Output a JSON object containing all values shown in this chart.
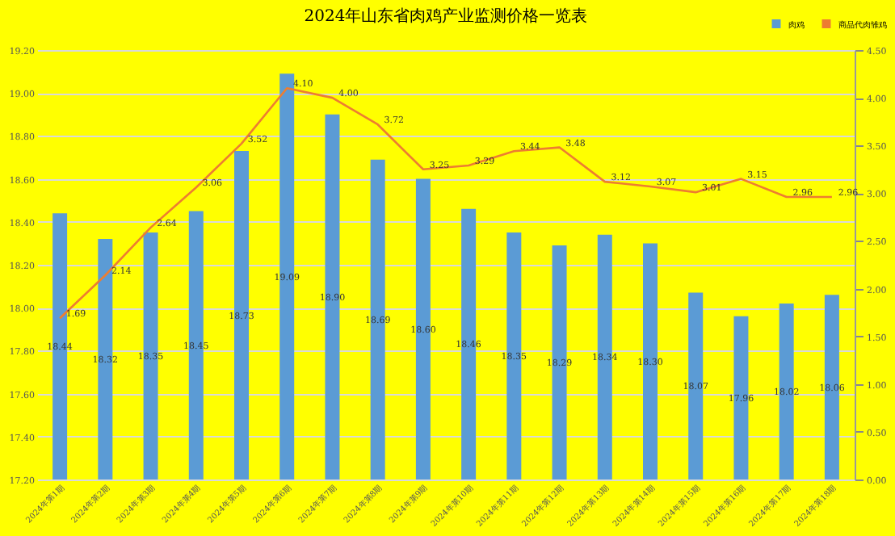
{
  "chart_data": {
    "type": "bar",
    "title": "2024年山东省肉鸡产业监测价格一览表",
    "categories": [
      "2024年第1期",
      "2024年第2期",
      "2024年第3期",
      "2024年第4期",
      "2024年第5期",
      "2024年第6期",
      "2024年第7期",
      "2024年第8期",
      "2024年第9期",
      "2024年第10期",
      "2024年第11期",
      "2024年第12期",
      "2024年第13期",
      "2024年第14期",
      "2024年第15期",
      "2024年第16期",
      "2024年第17期",
      "2024年第18期"
    ],
    "series": [
      {
        "name": "肉鸡",
        "color": "#5b9bd5",
        "values": [
          18.44,
          18.32,
          18.35,
          18.45,
          18.73,
          19.09,
          18.9,
          18.69,
          18.6,
          18.46,
          18.35,
          18.29,
          18.34,
          18.3,
          18.07,
          17.96,
          18.02,
          18.06
        ],
        "value_labels": [
          "18.44",
          "18.32",
          "18.35",
          "18.45",
          "18.73",
          "19.09",
          "18.90",
          "18.69",
          "18.60",
          "18.46",
          "18.35",
          "18.29",
          "18.34",
          "18.30",
          "18.07",
          "17.96",
          "18.02",
          "18.06"
        ]
      },
      {
        "name": "商品代肉雏鸡",
        "type": "line",
        "axis": "y2",
        "color": "#ed7d31",
        "values": [
          1.69,
          2.14,
          2.64,
          3.06,
          3.52,
          4.1,
          4.0,
          3.72,
          3.25,
          3.29,
          3.44,
          3.48,
          3.12,
          3.07,
          3.01,
          3.15,
          2.96,
          2.96
        ],
        "value_labels": [
          "1.69",
          "2.14",
          "2.64",
          "3.06",
          "3.52",
          "4.10",
          "4.00",
          "3.72",
          "3.25",
          "3.29",
          "3.44",
          "3.48",
          "3.12",
          "3.07",
          "3.01",
          "3.15",
          "2.96",
          "2.96"
        ]
      }
    ],
    "ylim": [
      17.2,
      19.2
    ],
    "yticks": [
      {
        "value": 17.2,
        "label": "17.20"
      },
      {
        "value": 17.4,
        "label": "17.40"
      },
      {
        "value": 17.6,
        "label": "17.60"
      },
      {
        "value": 17.8,
        "label": "17.80"
      },
      {
        "value": 18.0,
        "label": "18.00"
      },
      {
        "value": 18.2,
        "label": "18.20"
      },
      {
        "value": 18.4,
        "label": "18.40"
      },
      {
        "value": 18.6,
        "label": "18.60"
      },
      {
        "value": 18.8,
        "label": "18.80"
      },
      {
        "value": 19.0,
        "label": "19.00"
      },
      {
        "value": 19.2,
        "label": "19.20"
      }
    ],
    "y2lim": [
      0,
      4.5
    ],
    "y2ticks": [
      {
        "value": 0,
        "label": "0.00"
      },
      {
        "value": 0.5,
        "label": "0.50"
      },
      {
        "value": 1,
        "label": "1.00"
      },
      {
        "value": 1.5,
        "label": "1.50"
      },
      {
        "value": 2,
        "label": "2.00"
      },
      {
        "value": 2.5,
        "label": "2.50"
      },
      {
        "value": 3,
        "label": "3.00"
      },
      {
        "value": 3.5,
        "label": "3.50"
      },
      {
        "value": 4,
        "label": "4.00"
      },
      {
        "value": 4.5,
        "label": "4.50"
      }
    ],
    "grid": "y",
    "legend": "top right"
  }
}
